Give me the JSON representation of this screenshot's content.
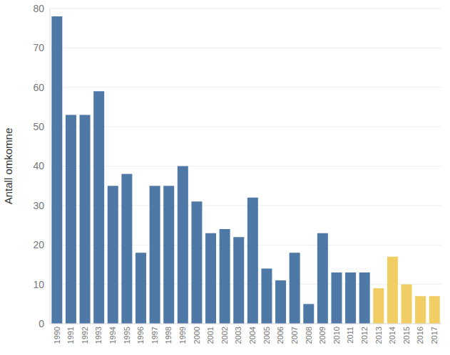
{
  "chart_data": {
    "type": "bar",
    "y_label": "Antall omkomne",
    "categories": [
      "1990",
      "1991",
      "1992",
      "1993",
      "1994",
      "1995",
      "1996",
      "1997",
      "1998",
      "1999",
      "2000",
      "2001",
      "2002",
      "2003",
      "2004",
      "2005",
      "2006",
      "2007",
      "2008",
      "2009",
      "2010",
      "2011",
      "2012",
      "2013",
      "2014",
      "2015",
      "2016",
      "2017"
    ],
    "values": [
      78,
      53,
      53,
      59,
      35,
      38,
      18,
      35,
      35,
      40,
      31,
      23,
      24,
      22,
      32,
      14,
      11,
      18,
      5,
      23,
      13,
      13,
      13,
      9,
      17,
      10,
      7,
      7
    ],
    "colors": [
      "#4e79a7",
      "#4e79a7",
      "#4e79a7",
      "#4e79a7",
      "#4e79a7",
      "#4e79a7",
      "#4e79a7",
      "#4e79a7",
      "#4e79a7",
      "#4e79a7",
      "#4e79a7",
      "#4e79a7",
      "#4e79a7",
      "#4e79a7",
      "#4e79a7",
      "#4e79a7",
      "#4e79a7",
      "#4e79a7",
      "#4e79a7",
      "#4e79a7",
      "#4e79a7",
      "#4e79a7",
      "#4e79a7",
      "#f1ce63",
      "#f1ce63",
      "#f1ce63",
      "#f1ce63",
      "#f1ce63"
    ],
    "ylim": [
      0,
      80
    ],
    "yticks": [
      0,
      10,
      20,
      30,
      40,
      50,
      60,
      70,
      80
    ],
    "grid": true
  }
}
